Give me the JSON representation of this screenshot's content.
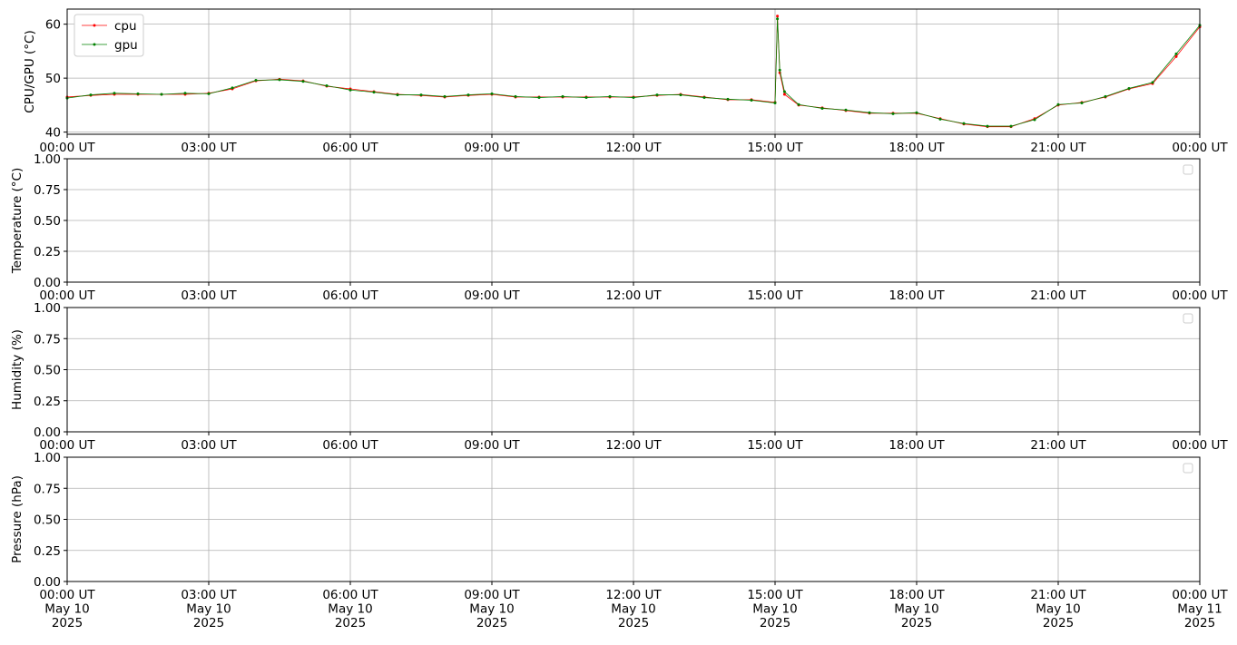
{
  "chart_data": [
    {
      "type": "line",
      "ylabel": "CPU/GPU (°C)",
      "xlim": [
        0,
        24
      ],
      "ylim": [
        39.6,
        62.8
      ],
      "yticks": [
        40,
        50,
        60
      ],
      "grid": true,
      "legend": "upper left",
      "xticks": [
        {
          "value": 0,
          "label": "00:00 UT"
        },
        {
          "value": 3,
          "label": "03:00 UT"
        },
        {
          "value": 6,
          "label": "06:00 UT"
        },
        {
          "value": 9,
          "label": "09:00 UT"
        },
        {
          "value": 12,
          "label": "12:00 UT"
        },
        {
          "value": 15,
          "label": "15:00 UT"
        },
        {
          "value": 18,
          "label": "18:00 UT"
        },
        {
          "value": 21,
          "label": "21:00 UT"
        },
        {
          "value": 24,
          "label": "00:00 UT"
        }
      ],
      "x": [
        0,
        0.5,
        1,
        1.5,
        2,
        2.5,
        3,
        3.5,
        4,
        4.5,
        5,
        5.5,
        6,
        6.5,
        7,
        7.5,
        8,
        8.5,
        9,
        9.5,
        10,
        10.5,
        11,
        11.5,
        12,
        12.5,
        13,
        13.5,
        14,
        14.5,
        15,
        15.05,
        15.1,
        15.2,
        15.5,
        16,
        16.5,
        17,
        17.5,
        18,
        18.5,
        19,
        19.5,
        20,
        20.5,
        21,
        21.5,
        22,
        22.5,
        23,
        23.5,
        24
      ],
      "series": [
        {
          "name": "cpu",
          "color": "#ff0000",
          "values": [
            46.5,
            46.8,
            47,
            47,
            47,
            47,
            47.2,
            48,
            49.5,
            49.8,
            49.5,
            48.5,
            48,
            47.5,
            47,
            46.8,
            46.5,
            46.8,
            47,
            46.5,
            46.5,
            46.5,
            46.5,
            46.5,
            46.5,
            46.8,
            47,
            46.5,
            46,
            46,
            45.5,
            61.5,
            51,
            47,
            45,
            44.5,
            44,
            43.5,
            43.5,
            43.5,
            42.5,
            41.5,
            41,
            41,
            42.5,
            45,
            45.5,
            46.5,
            48,
            49,
            54,
            59.5
          ]
        },
        {
          "name": "gpu",
          "color": "#008000",
          "values": [
            46.3,
            46.9,
            47.2,
            47.1,
            47,
            47.2,
            47.1,
            48.2,
            49.6,
            49.7,
            49.4,
            48.6,
            47.8,
            47.4,
            46.9,
            46.9,
            46.6,
            46.9,
            47.1,
            46.6,
            46.4,
            46.6,
            46.4,
            46.6,
            46.4,
            46.9,
            46.9,
            46.4,
            46.1,
            45.9,
            45.4,
            61,
            51.5,
            47.5,
            45.1,
            44.4,
            44.1,
            43.6,
            43.4,
            43.6,
            42.4,
            41.6,
            41.1,
            41.1,
            42.3,
            45.1,
            45.4,
            46.6,
            48.1,
            49.2,
            54.5,
            59.8
          ]
        }
      ]
    },
    {
      "type": "line",
      "ylabel": "Temperature (°C)",
      "xlim": [
        0,
        24
      ],
      "ylim": [
        0,
        1
      ],
      "grid": true,
      "legend": "upper right",
      "series": [],
      "yticks": [
        {
          "value": 0,
          "label": "0.00"
        },
        {
          "value": 0.25,
          "label": "0.25"
        },
        {
          "value": 0.5,
          "label": "0.50"
        },
        {
          "value": 0.75,
          "label": "0.75"
        },
        {
          "value": 1,
          "label": "1.00"
        }
      ],
      "xticks": [
        {
          "value": 0,
          "label": "00:00 UT"
        },
        {
          "value": 3,
          "label": "03:00 UT"
        },
        {
          "value": 6,
          "label": "06:00 UT"
        },
        {
          "value": 9,
          "label": "09:00 UT"
        },
        {
          "value": 12,
          "label": "12:00 UT"
        },
        {
          "value": 15,
          "label": "15:00 UT"
        },
        {
          "value": 18,
          "label": "18:00 UT"
        },
        {
          "value": 21,
          "label": "21:00 UT"
        },
        {
          "value": 24,
          "label": "00:00 UT"
        }
      ]
    },
    {
      "type": "line",
      "ylabel": "Humidity (%)",
      "xlim": [
        0,
        24
      ],
      "ylim": [
        0,
        1
      ],
      "grid": true,
      "legend": "upper right",
      "series": [],
      "yticks": [
        {
          "value": 0,
          "label": "0.00"
        },
        {
          "value": 0.25,
          "label": "0.25"
        },
        {
          "value": 0.5,
          "label": "0.50"
        },
        {
          "value": 0.75,
          "label": "0.75"
        },
        {
          "value": 1,
          "label": "1.00"
        }
      ],
      "xticks": [
        {
          "value": 0,
          "label": "00:00 UT"
        },
        {
          "value": 3,
          "label": "03:00 UT"
        },
        {
          "value": 6,
          "label": "06:00 UT"
        },
        {
          "value": 9,
          "label": "09:00 UT"
        },
        {
          "value": 12,
          "label": "12:00 UT"
        },
        {
          "value": 15,
          "label": "15:00 UT"
        },
        {
          "value": 18,
          "label": "18:00 UT"
        },
        {
          "value": 21,
          "label": "21:00 UT"
        },
        {
          "value": 24,
          "label": "00:00 UT"
        }
      ]
    },
    {
      "type": "line",
      "ylabel": "Pressure (hPa)",
      "xlim": [
        0,
        24
      ],
      "ylim": [
        0,
        1
      ],
      "grid": true,
      "legend": "upper right",
      "series": [],
      "yticks": [
        {
          "value": 0,
          "label": "0.00"
        },
        {
          "value": 0.25,
          "label": "0.25"
        },
        {
          "value": 0.5,
          "label": "0.50"
        },
        {
          "value": 0.75,
          "label": "0.75"
        },
        {
          "value": 1,
          "label": "1.00"
        }
      ],
      "xticks": [
        {
          "value": 0,
          "label": "00:00 UT\nMay 10\n2025"
        },
        {
          "value": 3,
          "label": "03:00 UT\nMay 10\n2025"
        },
        {
          "value": 6,
          "label": "06:00 UT\nMay 10\n2025"
        },
        {
          "value": 9,
          "label": "09:00 UT\nMay 10\n2025"
        },
        {
          "value": 12,
          "label": "12:00 UT\nMay 10\n2025"
        },
        {
          "value": 15,
          "label": "15:00 UT\nMay 10\n2025"
        },
        {
          "value": 18,
          "label": "18:00 UT\nMay 10\n2025"
        },
        {
          "value": 21,
          "label": "21:00 UT\nMay 10\n2025"
        },
        {
          "value": 24,
          "label": "00:00 UT\nMay 11\n2025"
        }
      ]
    }
  ]
}
